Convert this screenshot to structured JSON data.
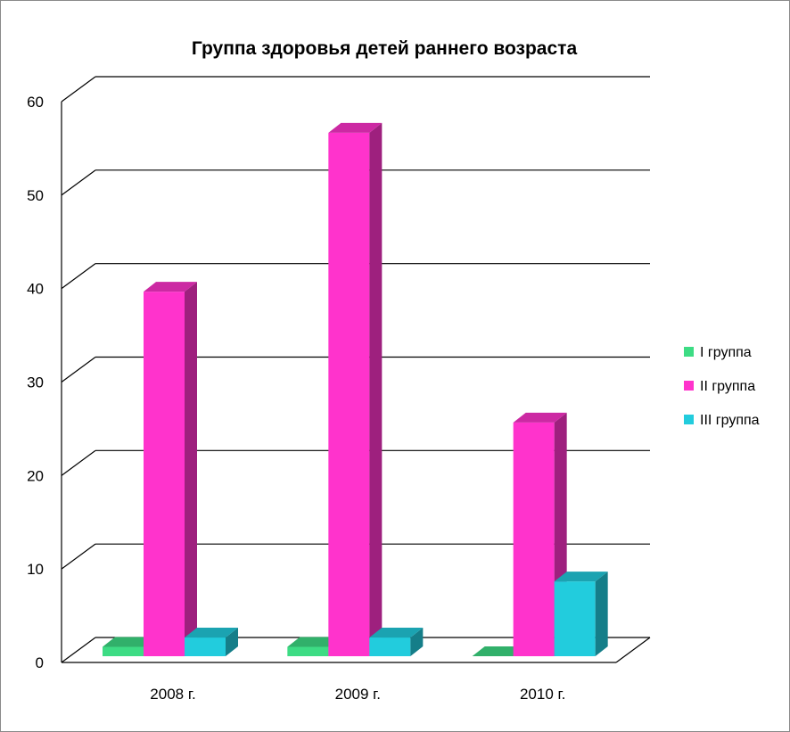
{
  "chart_data": {
    "type": "bar",
    "title": "Группа здоровья детей раннего возраста",
    "categories": [
      "2008 г.",
      "2009 г.",
      "2010 г."
    ],
    "series": [
      {
        "name": "I группа",
        "values": [
          1,
          1,
          0
        ],
        "color": "#3ddc84"
      },
      {
        "name": "II группа",
        "values": [
          39,
          56,
          25
        ],
        "color": "#ff33cc"
      },
      {
        "name": "III группа",
        "values": [
          2,
          2,
          8
        ],
        "color": "#22ccdd"
      }
    ],
    "ylim": [
      0,
      60
    ],
    "yticks": [
      "0",
      "10",
      "20",
      "30",
      "40",
      "50",
      "60"
    ],
    "grid": true,
    "legend_position": "right",
    "three_d": true
  }
}
